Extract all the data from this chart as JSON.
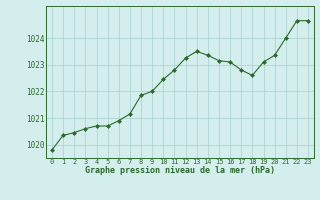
{
  "x": [
    0,
    1,
    2,
    3,
    4,
    5,
    6,
    7,
    8,
    9,
    10,
    11,
    12,
    13,
    14,
    15,
    16,
    17,
    18,
    19,
    20,
    21,
    22,
    23
  ],
  "y": [
    1019.8,
    1020.35,
    1020.45,
    1020.6,
    1020.7,
    1020.7,
    1020.9,
    1021.15,
    1021.85,
    1022.0,
    1022.45,
    1022.8,
    1023.25,
    1023.5,
    1023.35,
    1023.15,
    1023.1,
    1022.8,
    1022.6,
    1023.1,
    1023.35,
    1024.0,
    1024.65,
    1024.65
  ],
  "line_color": "#2d6a2d",
  "marker_color": "#2d6a2d",
  "bg_color": "#d4eeee",
  "grid_color": "#aed4d4",
  "xlabel": "Graphe pression niveau de la mer (hPa)",
  "xlabel_color": "#2d6a2d",
  "tick_color": "#2d6a2d",
  "ylim": [
    1019.5,
    1025.2
  ],
  "xlim": [
    -0.5,
    23.5
  ],
  "yticks": [
    1020,
    1021,
    1022,
    1023,
    1024
  ],
  "xticks": [
    0,
    1,
    2,
    3,
    4,
    5,
    6,
    7,
    8,
    9,
    10,
    11,
    12,
    13,
    14,
    15,
    16,
    17,
    18,
    19,
    20,
    21,
    22,
    23
  ]
}
